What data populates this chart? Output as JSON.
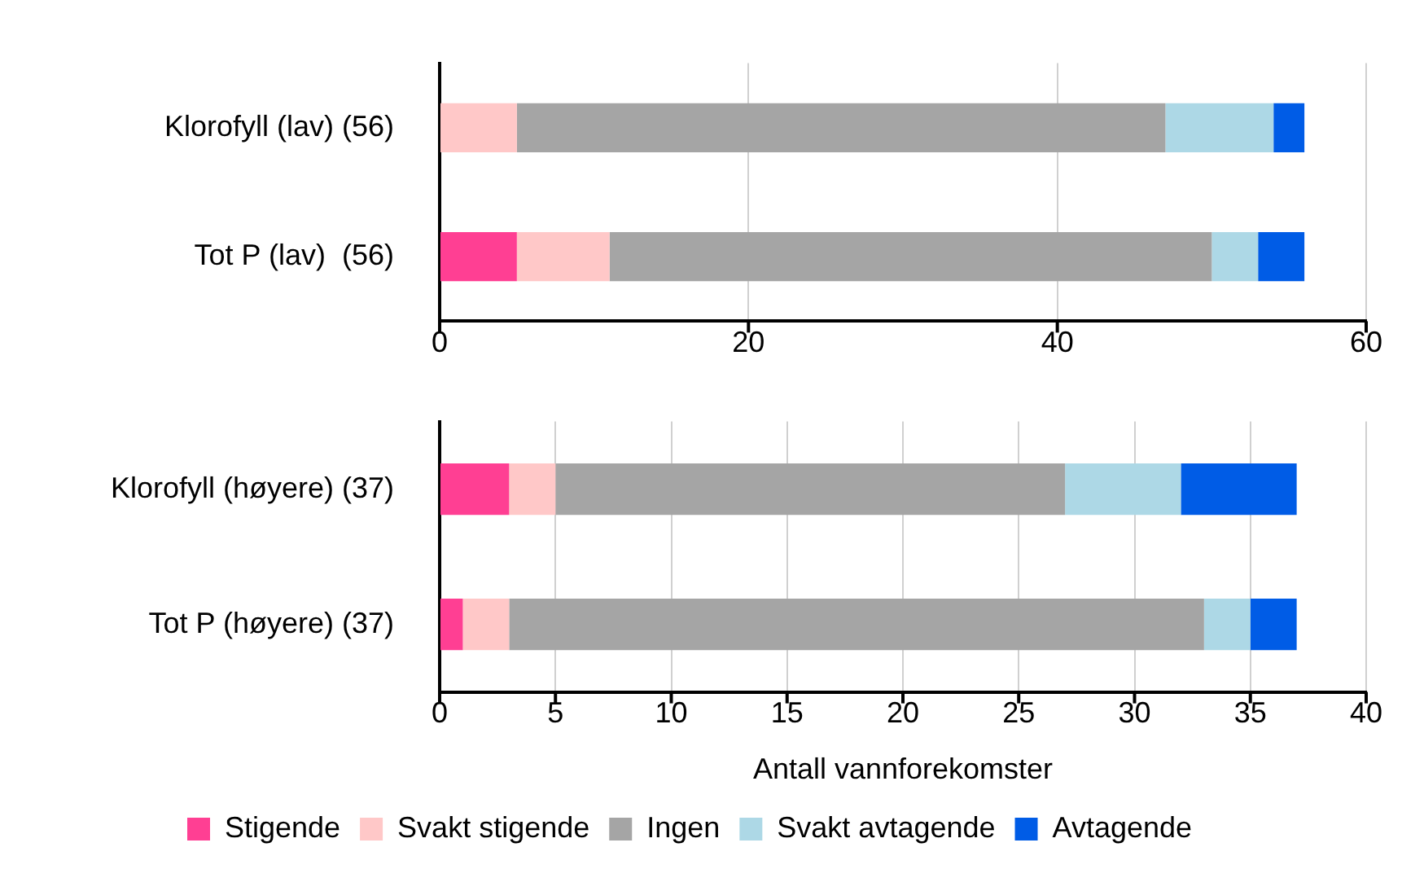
{
  "chart_data": [
    {
      "type": "bar",
      "orientation": "horizontal",
      "stacked": true,
      "categories": [
        "Klorofyll (lav) (56)",
        "Tot P (lav)  (56)"
      ],
      "xlim": [
        0,
        60
      ],
      "xticks": [
        0,
        20,
        40,
        60
      ],
      "grid": "x",
      "legend": false,
      "series": [
        {
          "color": "#ff3f93",
          "values": [
            0,
            5
          ]
        },
        {
          "color": "#ffc8c8",
          "values": [
            5,
            6
          ]
        },
        {
          "color": "#a5a5a5",
          "values": [
            42,
            39
          ]
        },
        {
          "color": "#add8e6",
          "values": [
            7,
            3
          ]
        },
        {
          "color": "#005ce6",
          "values": [
            2,
            3
          ]
        }
      ]
    },
    {
      "type": "bar",
      "orientation": "horizontal",
      "stacked": true,
      "categories": [
        "Klorofyll (høyere) (37)",
        "Tot P (høyere) (37)"
      ],
      "xlim": [
        0,
        40
      ],
      "xticks": [
        0,
        5,
        10,
        15,
        20,
        25,
        30,
        35,
        40
      ],
      "grid": "x",
      "legend": "bottom",
      "xlabel": "Antall vannforekomster",
      "series": [
        {
          "name": "Stigende",
          "color": "#ff3f93",
          "values": [
            3,
            1
          ]
        },
        {
          "name": "Svakt stigende",
          "color": "#ffc8c8",
          "values": [
            2,
            2
          ]
        },
        {
          "name": "Ingen",
          "color": "#a5a5a5",
          "values": [
            22,
            30
          ]
        },
        {
          "name": "Svakt avtagende",
          "color": "#add8e6",
          "values": [
            5,
            2
          ]
        },
        {
          "name": "Avtagende",
          "color": "#005ce6",
          "values": [
            5,
            2
          ]
        }
      ]
    }
  ]
}
